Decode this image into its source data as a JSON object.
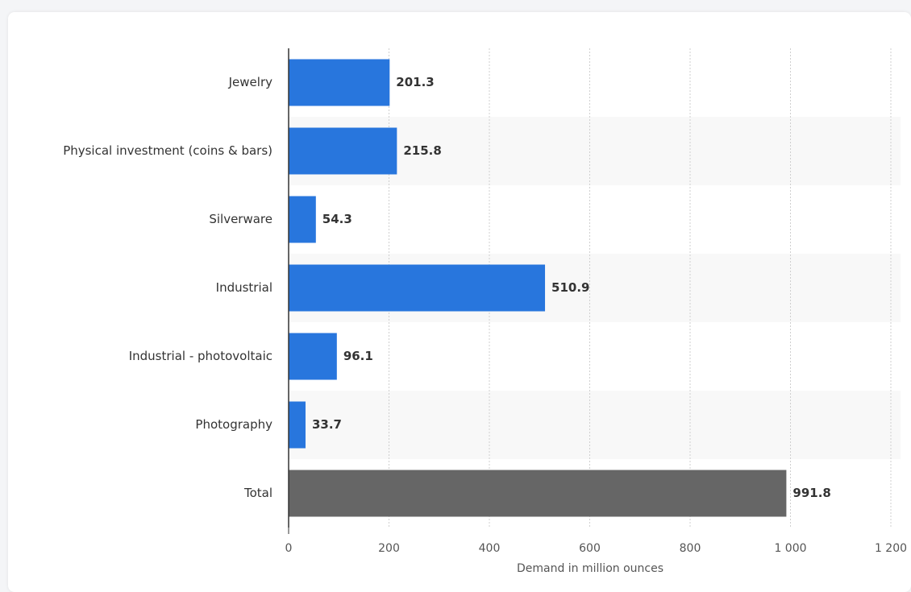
{
  "chart_data": {
    "type": "hbar",
    "categories": [
      "Jewelry",
      "Physical investment (coins & bars)",
      "Silverware",
      "Industrial",
      "Industrial - photovoltaic",
      "Photography",
      "Total"
    ],
    "values": [
      201.3,
      215.8,
      54.3,
      510.9,
      96.1,
      33.7,
      991.8
    ],
    "colors": [
      "#2876dd",
      "#2876dd",
      "#2876dd",
      "#2876dd",
      "#2876dd",
      "#2876dd",
      "#666666"
    ],
    "xlabel": "Demand in million ounces",
    "xlim": [
      0,
      1200
    ],
    "xticks": [
      0,
      200,
      400,
      600,
      800,
      {
        "value": 1000,
        "label": "1 000"
      },
      {
        "value": 1200,
        "label": "1 200"
      }
    ],
    "grid": true
  }
}
